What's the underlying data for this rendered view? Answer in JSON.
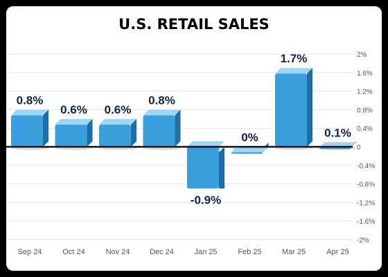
{
  "chart_data": {
    "type": "bar",
    "title": "U.S. RETAIL SALES",
    "categories": [
      "Sep 24",
      "Oct 24",
      "Nov 24",
      "Dec 24",
      "Jan 25",
      "Feb 25",
      "Mar 25",
      "Apr 25"
    ],
    "values": [
      0.8,
      0.6,
      0.6,
      0.8,
      -0.9,
      0.0,
      1.7,
      0.1
    ],
    "value_labels": [
      "0.8%",
      "0.6%",
      "0.6%",
      "0.8%",
      "-0.9%",
      "0%",
      "1.7%",
      "0.1%"
    ],
    "ylim": [
      -2,
      2
    ],
    "yticks": [
      2,
      1.6,
      1.2,
      0.8,
      0.4,
      0,
      -0.4,
      -0.8,
      -1.2,
      -1.6,
      -2
    ],
    "ytick_labels": [
      "2%",
      "1.6%",
      "1.2%",
      "0.8%",
      "0.4%",
      "0",
      "-0.4%",
      "-0.8%",
      "-1.2%",
      "-1.6%",
      "-2%"
    ],
    "grid": true,
    "y_axis_side": "right",
    "colors": {
      "title": "#1a6fd1",
      "bar_front": "#3aa0dd",
      "bar_top": "#9fd6f5",
      "bar_side": "#1e6fa8",
      "value_label": "#0f2344",
      "tick_label": "#555555",
      "grid": "#e3e3e3"
    }
  }
}
